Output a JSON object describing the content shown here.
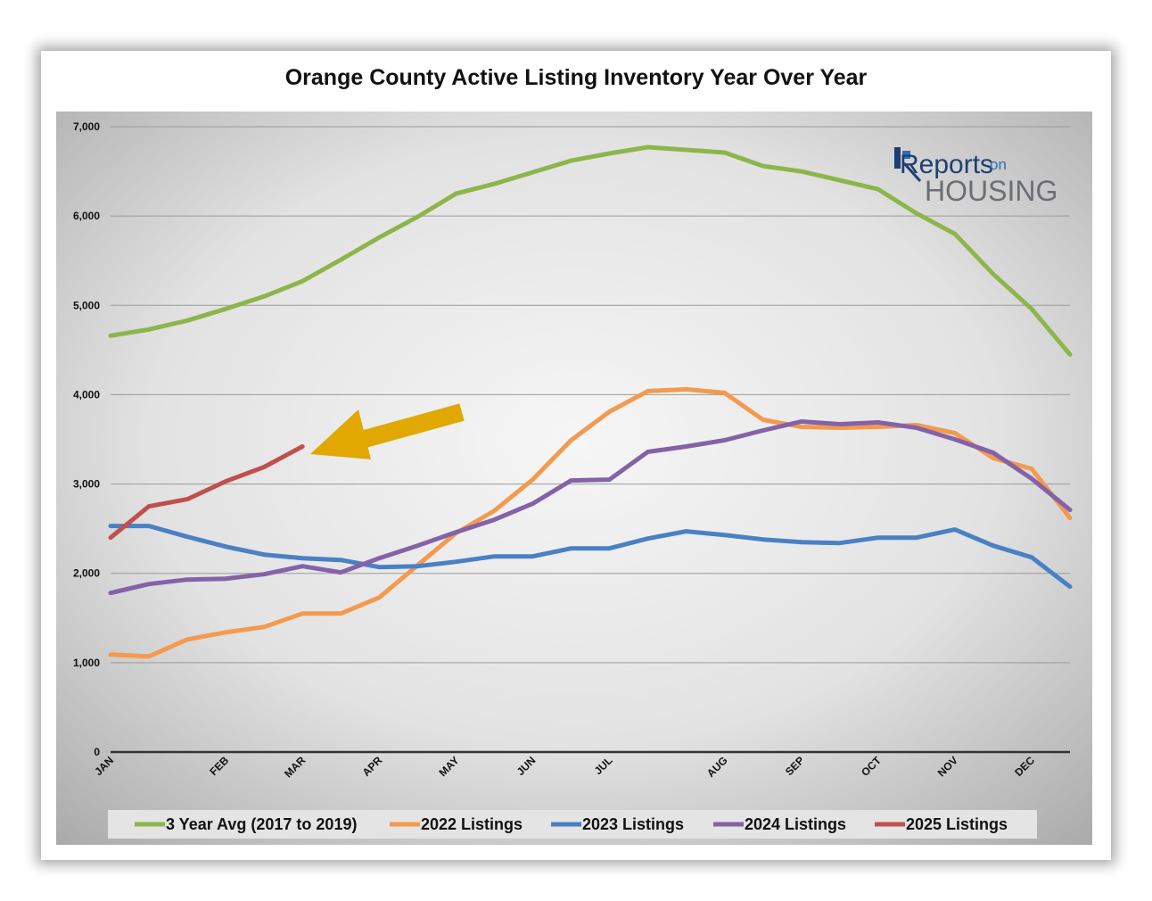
{
  "chart_data": {
    "type": "line",
    "title": "Orange County Active Listing Inventory Year Over Year",
    "x_ticks": [
      "JAN",
      "FEB",
      "MAR",
      "APR",
      "MAY",
      "JUN",
      "JUL",
      "AUG",
      "SEP",
      "OCT",
      "NOV",
      "DEC"
    ],
    "y_ticks": [
      "0",
      "1,000",
      "2,000",
      "3,000",
      "4,000",
      "5,000",
      "6,000",
      "7,000"
    ],
    "ylim": [
      0,
      7000
    ],
    "grid": true,
    "legend_position": "bottom",
    "series": [
      {
        "name": "3 Year Avg (2017 to 2019)",
        "color": "#8db54b",
        "values": [
          4660,
          4730,
          4830,
          4960,
          5100,
          5270,
          5510,
          5760,
          5990,
          6250,
          6360,
          6490,
          6620,
          6700,
          6770,
          6740,
          6710,
          6560,
          6500,
          6400,
          6300,
          6030,
          5800,
          5350,
          4960,
          4450
        ]
      },
      {
        "name": "2022 Listings",
        "color": "#f39a4f",
        "values": [
          1090,
          1070,
          1260,
          1340,
          1400,
          1550,
          1550,
          1730,
          2090,
          2450,
          2700,
          3050,
          3490,
          3810,
          4040,
          4060,
          4020,
          3720,
          3640,
          3630,
          3640,
          3660,
          3570,
          3290,
          3170,
          2620
        ]
      },
      {
        "name": "2023 Listings",
        "color": "#4a80c4",
        "values": [
          2530,
          2530,
          2410,
          2300,
          2210,
          2170,
          2150,
          2070,
          2080,
          2130,
          2190,
          2190,
          2280,
          2280,
          2390,
          2470,
          2430,
          2380,
          2350,
          2340,
          2400,
          2400,
          2490,
          2310,
          2180,
          1850
        ]
      },
      {
        "name": "2024 Listings",
        "color": "#8462a8",
        "values": [
          1780,
          1880,
          1930,
          1940,
          1990,
          2080,
          2010,
          2170,
          2310,
          2460,
          2600,
          2780,
          3040,
          3050,
          3360,
          3420,
          3490,
          3600,
          3700,
          3670,
          3690,
          3630,
          3500,
          3350,
          3060,
          2710
        ]
      },
      {
        "name": "2025 Listings",
        "color": "#c0504d",
        "values": [
          2400,
          2750,
          2830,
          3030,
          3190,
          3420
        ]
      }
    ],
    "annotation": {
      "type": "arrow",
      "color": "#e0a800",
      "points_to_series": "2025 Listings"
    }
  },
  "logo": {
    "part1": "Reports",
    "part2": "on",
    "part3": "HOUSING"
  }
}
